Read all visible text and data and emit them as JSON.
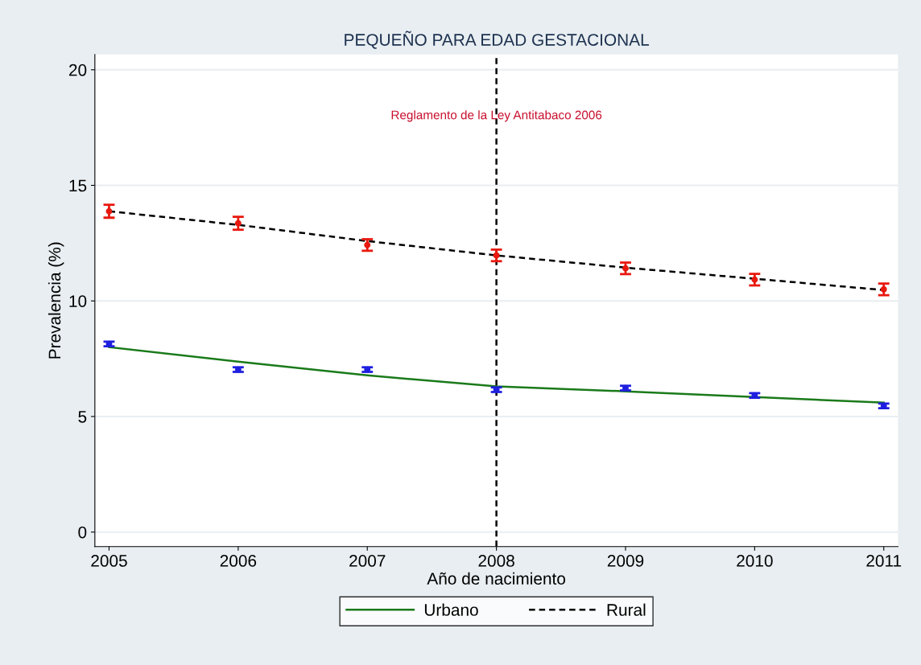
{
  "chart_data": {
    "type": "line",
    "title": "PEQUEÑO PARA EDAD GESTACIONAL",
    "xlabel": "Año de nacimiento",
    "ylabel": "Prevalencia (%)",
    "x": [
      2005,
      2006,
      2007,
      2008,
      2009,
      2010,
      2011
    ],
    "series": [
      {
        "name": "Urbano",
        "marker": "none",
        "color": "#1a7a1a",
        "line_style": "solid",
        "values": [
          8.0,
          7.37,
          6.78,
          6.3,
          6.09,
          5.84,
          5.6
        ]
      },
      {
        "name": "Rural",
        "marker": "none",
        "color": "#000000",
        "line_style": "dashed",
        "values": [
          13.88,
          13.29,
          12.59,
          11.97,
          11.44,
          10.96,
          10.47
        ]
      },
      {
        "type": "scatter",
        "marker": "circle",
        "color": "#1f1fe0",
        "values": [
          8.14,
          7.03,
          7.03,
          6.16,
          6.23,
          5.91,
          5.46
        ],
        "errors": [
          0.1,
          0.1,
          0.1,
          0.1,
          0.1,
          0.1,
          0.1
        ]
      },
      {
        "type": "scatter",
        "marker": "circle",
        "color": "#e8190f",
        "values": [
          13.88,
          13.36,
          12.42,
          11.97,
          11.41,
          10.92,
          10.5
        ],
        "errors": [
          0.28,
          0.28,
          0.25,
          0.25,
          0.25,
          0.25,
          0.25
        ]
      }
    ],
    "xlim": [
      2004.89,
      2011.11
    ],
    "xticks": [
      2005,
      2006,
      2007,
      2008,
      2009,
      2010,
      2011
    ],
    "ylim": [
      -0.63,
      20.66
    ],
    "yticks": [
      0,
      5,
      10,
      15,
      20
    ],
    "grid": "y",
    "legend": "bottom",
    "ref_lines": [
      {
        "axis": "x",
        "value": 2008,
        "color": "#000000",
        "line_style": "dashed"
      }
    ],
    "annotations": [
      {
        "text": "Reglamento de la Ley Antitabaco 2006",
        "x": 2008,
        "y": 18
      }
    ]
  }
}
